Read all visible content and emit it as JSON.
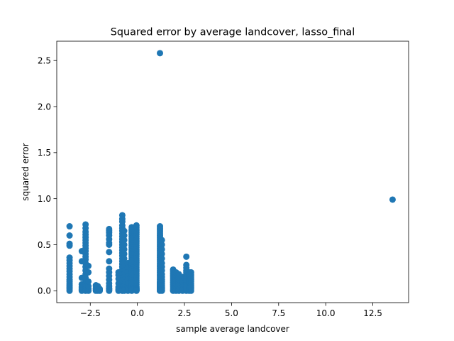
{
  "chart_data": {
    "type": "scatter",
    "title": "Squared error by average landcover, lasso_final",
    "xlabel": "sample average landcover",
    "ylabel": "squared error",
    "xlim": [
      -4.28,
      14.4
    ],
    "ylim": [
      -0.129,
      2.71
    ],
    "xticks": [
      -2.5,
      0.0,
      2.5,
      5.0,
      7.5,
      10.0,
      12.5
    ],
    "xtick_labels": [
      "−2.5",
      "0.0",
      "2.5",
      "5.0",
      "7.5",
      "10.0",
      "12.5"
    ],
    "yticks": [
      0.0,
      0.5,
      1.0,
      1.5,
      2.0,
      2.5
    ],
    "ytick_labels": [
      "0.0",
      "0.5",
      "1.0",
      "1.5",
      "2.0",
      "2.5"
    ],
    "grid": false,
    "legend": "none",
    "marker_color": "#1f77b4",
    "series": [
      {
        "x": [
          -3.6,
          -3.6,
          -3.6,
          -3.6,
          -3.6,
          -3.6,
          -3.6,
          -3.6,
          -3.6,
          -3.6,
          -3.6,
          -3.6,
          -3.6,
          -3.6,
          -3.6,
          -3.6,
          -3.6,
          -3.6,
          -3.6,
          -2.95,
          -2.95,
          -2.95,
          -2.95,
          -2.95,
          -2.95,
          -2.95,
          -2.95,
          -2.75,
          -2.75,
          -2.75,
          -2.75,
          -2.75,
          -2.75,
          -2.75,
          -2.75,
          -2.75,
          -2.75,
          -2.75,
          -2.75,
          -2.75,
          -2.75,
          -2.75,
          -2.75,
          -2.75,
          -2.75,
          -2.75,
          -2.75,
          -2.75,
          -2.75,
          -2.75,
          -2.6,
          -2.6,
          -2.6,
          -2.6,
          -2.6,
          -2.6,
          -2.2,
          -2.2,
          -2.2,
          -2.2,
          -2.2,
          -2.2,
          -2.1,
          -2.1,
          -2.1,
          -2.1,
          -2.0,
          -2.0,
          -2.0,
          -1.5,
          -1.5,
          -1.5,
          -1.5,
          -1.5,
          -1.5,
          -1.5,
          -1.5,
          -1.5,
          -1.5,
          -1.5,
          -1.5,
          -1.5,
          -1.5,
          -1.5,
          -1.5,
          -1.5,
          -1.5,
          -1.5,
          -1.0,
          -1.0,
          -1.0,
          -1.0,
          -1.0,
          -1.0,
          -1.0,
          -1.0,
          -0.8,
          -0.8,
          -0.8,
          -0.8,
          -0.8,
          -0.8,
          -0.8,
          -0.8,
          -0.8,
          -0.8,
          -0.8,
          -0.8,
          -0.8,
          -0.8,
          -0.8,
          -0.8,
          -0.8,
          -0.8,
          -0.8,
          -0.8,
          -0.8,
          -0.8,
          -0.8,
          -0.8,
          -0.8,
          -0.8,
          -0.8,
          -0.8,
          -0.8,
          -0.8,
          -0.8,
          -0.8,
          -0.8,
          -0.8,
          -0.8,
          -0.8,
          -0.8,
          -0.8,
          -0.8,
          -0.8,
          -0.8,
          -0.8,
          -0.7,
          -0.7,
          -0.7,
          -0.7,
          -0.7,
          -0.7,
          -0.7,
          -0.7,
          -0.7,
          -0.7,
          -0.7,
          -0.7,
          -0.7,
          -0.7,
          -0.7,
          -0.7,
          -0.7,
          -0.7,
          -0.7,
          -0.7,
          -0.5,
          -0.5,
          -0.5,
          -0.5,
          -0.5,
          -0.5,
          -0.5,
          -0.5,
          -0.5,
          -0.5,
          -0.3,
          -0.3,
          -0.3,
          -0.3,
          -0.3,
          -0.3,
          -0.3,
          -0.3,
          -0.3,
          -0.3,
          -0.3,
          -0.3,
          -0.3,
          -0.3,
          -0.3,
          -0.3,
          -0.3,
          -0.3,
          -0.3,
          -0.3,
          -0.3,
          -0.3,
          -0.3,
          -0.3,
          -0.3,
          -0.3,
          -0.3,
          -0.3,
          -0.3,
          -0.3,
          -0.3,
          -0.3,
          -0.3,
          -0.3,
          -0.3,
          -0.3,
          -0.3,
          -0.05,
          -0.05,
          -0.05,
          -0.05,
          -0.05,
          -0.05,
          -0.05,
          -0.05,
          -0.05,
          -0.05,
          -0.05,
          -0.05,
          -0.05,
          -0.05,
          -0.05,
          -0.05,
          -0.05,
          -0.05,
          -0.05,
          -0.05,
          -0.05,
          -0.05,
          -0.05,
          -0.05,
          -0.05,
          -0.05,
          -0.05,
          -0.05,
          -0.05,
          -0.05,
          -0.05,
          -0.05,
          -0.05,
          -0.05,
          -0.05,
          -0.05,
          -0.05,
          -0.05,
          -0.05,
          -0.05,
          -0.05,
          -0.05,
          -0.05,
          -0.05,
          1.2,
          1.2,
          1.2,
          1.2,
          1.2,
          1.2,
          1.2,
          1.2,
          1.2,
          1.2,
          1.2,
          1.2,
          1.2,
          1.2,
          1.2,
          1.2,
          1.2,
          1.2,
          1.2,
          1.2,
          1.2,
          1.2,
          1.2,
          1.2,
          1.2,
          1.2,
          1.2,
          1.2,
          1.2,
          1.2,
          1.2,
          1.2,
          1.2,
          1.2,
          1.2,
          1.2,
          1.2,
          1.2,
          1.2,
          1.2,
          1.2,
          1.2,
          1.2,
          1.2,
          1.2,
          1.2,
          1.2,
          1.2,
          1.2,
          1.2,
          1.2,
          1.3,
          1.3,
          1.3,
          1.3,
          1.3,
          1.3,
          1.3,
          1.3,
          1.3,
          1.3,
          1.3,
          1.3,
          1.3,
          1.3,
          1.3,
          1.3,
          1.3,
          1.3,
          1.3,
          1.3,
          1.9,
          1.9,
          1.9,
          1.9,
          1.9,
          1.9,
          1.9,
          1.9,
          1.9,
          1.9,
          1.9,
          1.9,
          1.9,
          2.05,
          2.05,
          2.05,
          2.05,
          2.05,
          2.05,
          2.05,
          2.05,
          2.05,
          2.05,
          2.05,
          2.2,
          2.2,
          2.2,
          2.2,
          2.2,
          2.2,
          2.2,
          2.2,
          2.2,
          2.2,
          2.4,
          2.4,
          2.4,
          2.4,
          2.4,
          2.4,
          2.4,
          2.4,
          2.4,
          2.6,
          2.6,
          2.6,
          2.6,
          2.6,
          2.6,
          2.6,
          2.6,
          2.6,
          2.6,
          2.6,
          2.6,
          2.6,
          2.6,
          2.6,
          2.75,
          2.75,
          2.75,
          2.75,
          2.75,
          2.75,
          2.75,
          2.75,
          2.75,
          2.75,
          2.75,
          2.85,
          2.85,
          2.85,
          2.85,
          2.85,
          2.85,
          2.85,
          2.85,
          2.85,
          2.85,
          2.85,
          1.2,
          13.55
        ],
        "y": [
          0.7,
          0.6,
          0.51,
          0.49,
          0.36,
          0.33,
          0.3,
          0.27,
          0.24,
          0.21,
          0.18,
          0.15,
          0.12,
          0.1,
          0.08,
          0.06,
          0.04,
          0.02,
          0.0,
          0.0,
          0.01,
          0.02,
          0.04,
          0.07,
          0.14,
          0.32,
          0.43,
          0.72,
          0.68,
          0.64,
          0.61,
          0.58,
          0.55,
          0.52,
          0.49,
          0.46,
          0.43,
          0.4,
          0.37,
          0.34,
          0.3,
          0.26,
          0.22,
          0.18,
          0.14,
          0.1,
          0.07,
          0.04,
          0.02,
          0.0,
          0.0,
          0.02,
          0.05,
          0.1,
          0.2,
          0.27,
          0.0,
          0.01,
          0.02,
          0.03,
          0.05,
          0.06,
          0.0,
          0.01,
          0.03,
          0.05,
          0.0,
          0.01,
          0.02,
          0.67,
          0.65,
          0.63,
          0.6,
          0.56,
          0.52,
          0.5,
          0.42,
          0.32,
          0.24,
          0.2,
          0.16,
          0.12,
          0.08,
          0.05,
          0.03,
          0.02,
          0.01,
          0.0,
          0.0,
          0.01,
          0.02,
          0.04,
          0.08,
          0.13,
          0.17,
          0.2,
          0.82,
          0.78,
          0.75,
          0.71,
          0.68,
          0.65,
          0.62,
          0.59,
          0.56,
          0.53,
          0.5,
          0.47,
          0.44,
          0.41,
          0.38,
          0.35,
          0.32,
          0.29,
          0.26,
          0.23,
          0.2,
          0.18,
          0.16,
          0.14,
          0.12,
          0.1,
          0.08,
          0.07,
          0.06,
          0.05,
          0.04,
          0.03,
          0.025,
          0.02,
          0.015,
          0.01,
          0.008,
          0.005,
          0.003,
          0.002,
          0.001,
          0.0,
          0.65,
          0.6,
          0.55,
          0.5,
          0.45,
          0.4,
          0.35,
          0.3,
          0.26,
          0.22,
          0.18,
          0.15,
          0.12,
          0.09,
          0.07,
          0.05,
          0.03,
          0.02,
          0.01,
          0.0,
          0.3,
          0.25,
          0.2,
          0.16,
          0.12,
          0.08,
          0.05,
          0.03,
          0.01,
          0.0,
          0.69,
          0.67,
          0.65,
          0.63,
          0.61,
          0.59,
          0.57,
          0.55,
          0.53,
          0.51,
          0.49,
          0.47,
          0.45,
          0.43,
          0.41,
          0.39,
          0.37,
          0.35,
          0.33,
          0.31,
          0.29,
          0.27,
          0.25,
          0.23,
          0.21,
          0.19,
          0.17,
          0.15,
          0.13,
          0.11,
          0.09,
          0.07,
          0.05,
          0.03,
          0.02,
          0.01,
          0.0,
          0.71,
          0.69,
          0.67,
          0.65,
          0.63,
          0.61,
          0.59,
          0.57,
          0.55,
          0.53,
          0.51,
          0.49,
          0.47,
          0.45,
          0.43,
          0.41,
          0.39,
          0.37,
          0.35,
          0.33,
          0.31,
          0.29,
          0.27,
          0.25,
          0.23,
          0.21,
          0.19,
          0.17,
          0.15,
          0.13,
          0.11,
          0.09,
          0.07,
          0.05,
          0.04,
          0.03,
          0.025,
          0.02,
          0.015,
          0.01,
          0.007,
          0.004,
          0.002,
          0.0,
          0.7,
          0.68,
          0.66,
          0.64,
          0.62,
          0.6,
          0.58,
          0.56,
          0.54,
          0.52,
          0.5,
          0.48,
          0.46,
          0.44,
          0.42,
          0.4,
          0.38,
          0.36,
          0.34,
          0.32,
          0.3,
          0.28,
          0.26,
          0.24,
          0.22,
          0.2,
          0.18,
          0.16,
          0.14,
          0.12,
          0.1,
          0.09,
          0.08,
          0.07,
          0.06,
          0.05,
          0.045,
          0.04,
          0.035,
          0.03,
          0.025,
          0.02,
          0.017,
          0.014,
          0.011,
          0.008,
          0.006,
          0.004,
          0.002,
          0.001,
          0.0,
          0.55,
          0.5,
          0.45,
          0.4,
          0.35,
          0.3,
          0.26,
          0.22,
          0.18,
          0.15,
          0.12,
          0.1,
          0.08,
          0.06,
          0.04,
          0.03,
          0.02,
          0.01,
          0.005,
          0.0,
          0.23,
          0.21,
          0.19,
          0.17,
          0.15,
          0.13,
          0.11,
          0.09,
          0.07,
          0.05,
          0.03,
          0.01,
          0.0,
          0.2,
          0.18,
          0.16,
          0.14,
          0.12,
          0.1,
          0.08,
          0.06,
          0.04,
          0.02,
          0.0,
          0.18,
          0.15,
          0.12,
          0.1,
          0.08,
          0.06,
          0.04,
          0.02,
          0.01,
          0.0,
          0.15,
          0.12,
          0.1,
          0.08,
          0.06,
          0.04,
          0.02,
          0.01,
          0.0,
          0.37,
          0.28,
          0.25,
          0.22,
          0.2,
          0.18,
          0.16,
          0.14,
          0.12,
          0.1,
          0.08,
          0.06,
          0.04,
          0.02,
          0.0,
          0.2,
          0.18,
          0.16,
          0.14,
          0.12,
          0.1,
          0.08,
          0.06,
          0.04,
          0.02,
          0.0,
          0.2,
          0.18,
          0.16,
          0.14,
          0.12,
          0.1,
          0.08,
          0.06,
          0.04,
          0.02,
          0.0,
          2.58,
          0.99
        ]
      }
    ]
  }
}
